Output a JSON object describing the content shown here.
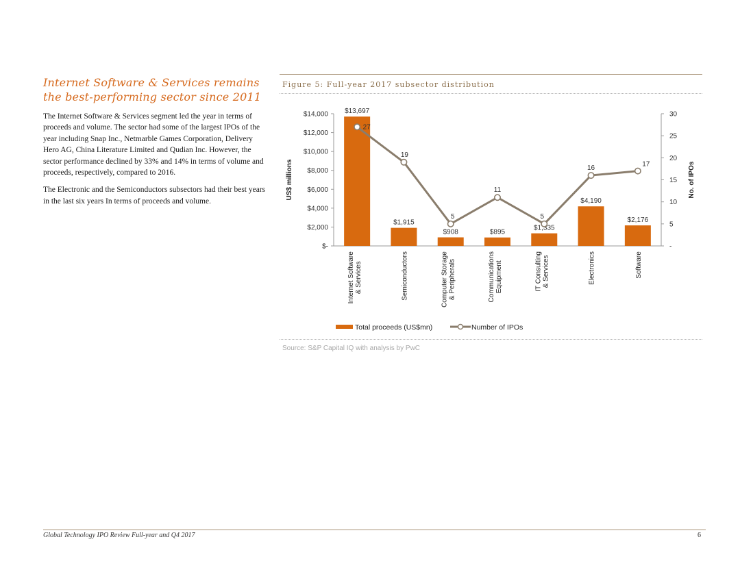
{
  "left": {
    "headline_line1": "Internet Software & Services remains",
    "headline_line2": "the best-performing sector since 2011",
    "paragraph1": "The Internet Software & Services segment led the year in terms of proceeds and volume. The sector had some of the largest IPOs of the year including Snap Inc., Netmarble Games Corporation, Delivery Hero AG, China Literature Limited and Qudian Inc. However, the sector performance declined by 33% and 14% in terms of volume and proceeds, respectively, compared to 2016.",
    "paragraph2": "The Electronic and the Semiconductors subsectors had their best years in the last six years In terms of proceeds and volume."
  },
  "figure": {
    "title": "Figure 5: Full-year 2017 subsector distribution",
    "source": "Source: S&P Capital IQ with analysis by PwC"
  },
  "footer": {
    "text": "Global Technology IPO Review Full-year and Q4 2017",
    "page": "6"
  },
  "colors": {
    "bar": "#d86a0f",
    "line": "#8a7d6c",
    "marker_fill": "#ffffff",
    "accent": "#d66a1e"
  },
  "chart_data": {
    "type": "bar",
    "categories": [
      [
        "Internet Software",
        "& Services"
      ],
      [
        "Semiconductors"
      ],
      [
        "Computer Storage",
        "& Peripherals"
      ],
      [
        "Communications",
        "Equipment"
      ],
      [
        "IT Consulting",
        "& Services"
      ],
      [
        "Electronics"
      ],
      [
        "Software"
      ]
    ],
    "series": [
      {
        "name": "Total proceeds (US$mn)",
        "type": "bar",
        "axis": "left",
        "values": [
          13697,
          1915,
          908,
          895,
          1335,
          4190,
          2176
        ],
        "labels": [
          "$13,697",
          "$1,915",
          "$908",
          "$895",
          "$1,335",
          "$4,190",
          "$2,176"
        ]
      },
      {
        "name": "Number of IPOs",
        "type": "line",
        "axis": "right",
        "values": [
          27,
          19,
          5,
          11,
          5,
          16,
          17
        ],
        "labels": [
          "27",
          "19",
          "5",
          "11",
          "5",
          "16",
          "17"
        ]
      }
    ],
    "ylabel": "US$ millions",
    "y2label": "No. of IPOs",
    "ylim": [
      0,
      14000
    ],
    "y2lim": [
      0,
      30
    ],
    "yticks": [
      0,
      2000,
      4000,
      6000,
      8000,
      10000,
      12000,
      14000
    ],
    "yticklabels": [
      "$-",
      "$2,000",
      "$4,000",
      "$6,000",
      "$8,000",
      "$10,000",
      "$12,000",
      "$14,000"
    ],
    "y2ticks": [
      0,
      5,
      10,
      15,
      20,
      25,
      30
    ],
    "y2ticklabels": [
      "-",
      "5",
      "10",
      "15",
      "20",
      "25",
      "30"
    ],
    "grid": false,
    "legend_position": "bottom"
  }
}
